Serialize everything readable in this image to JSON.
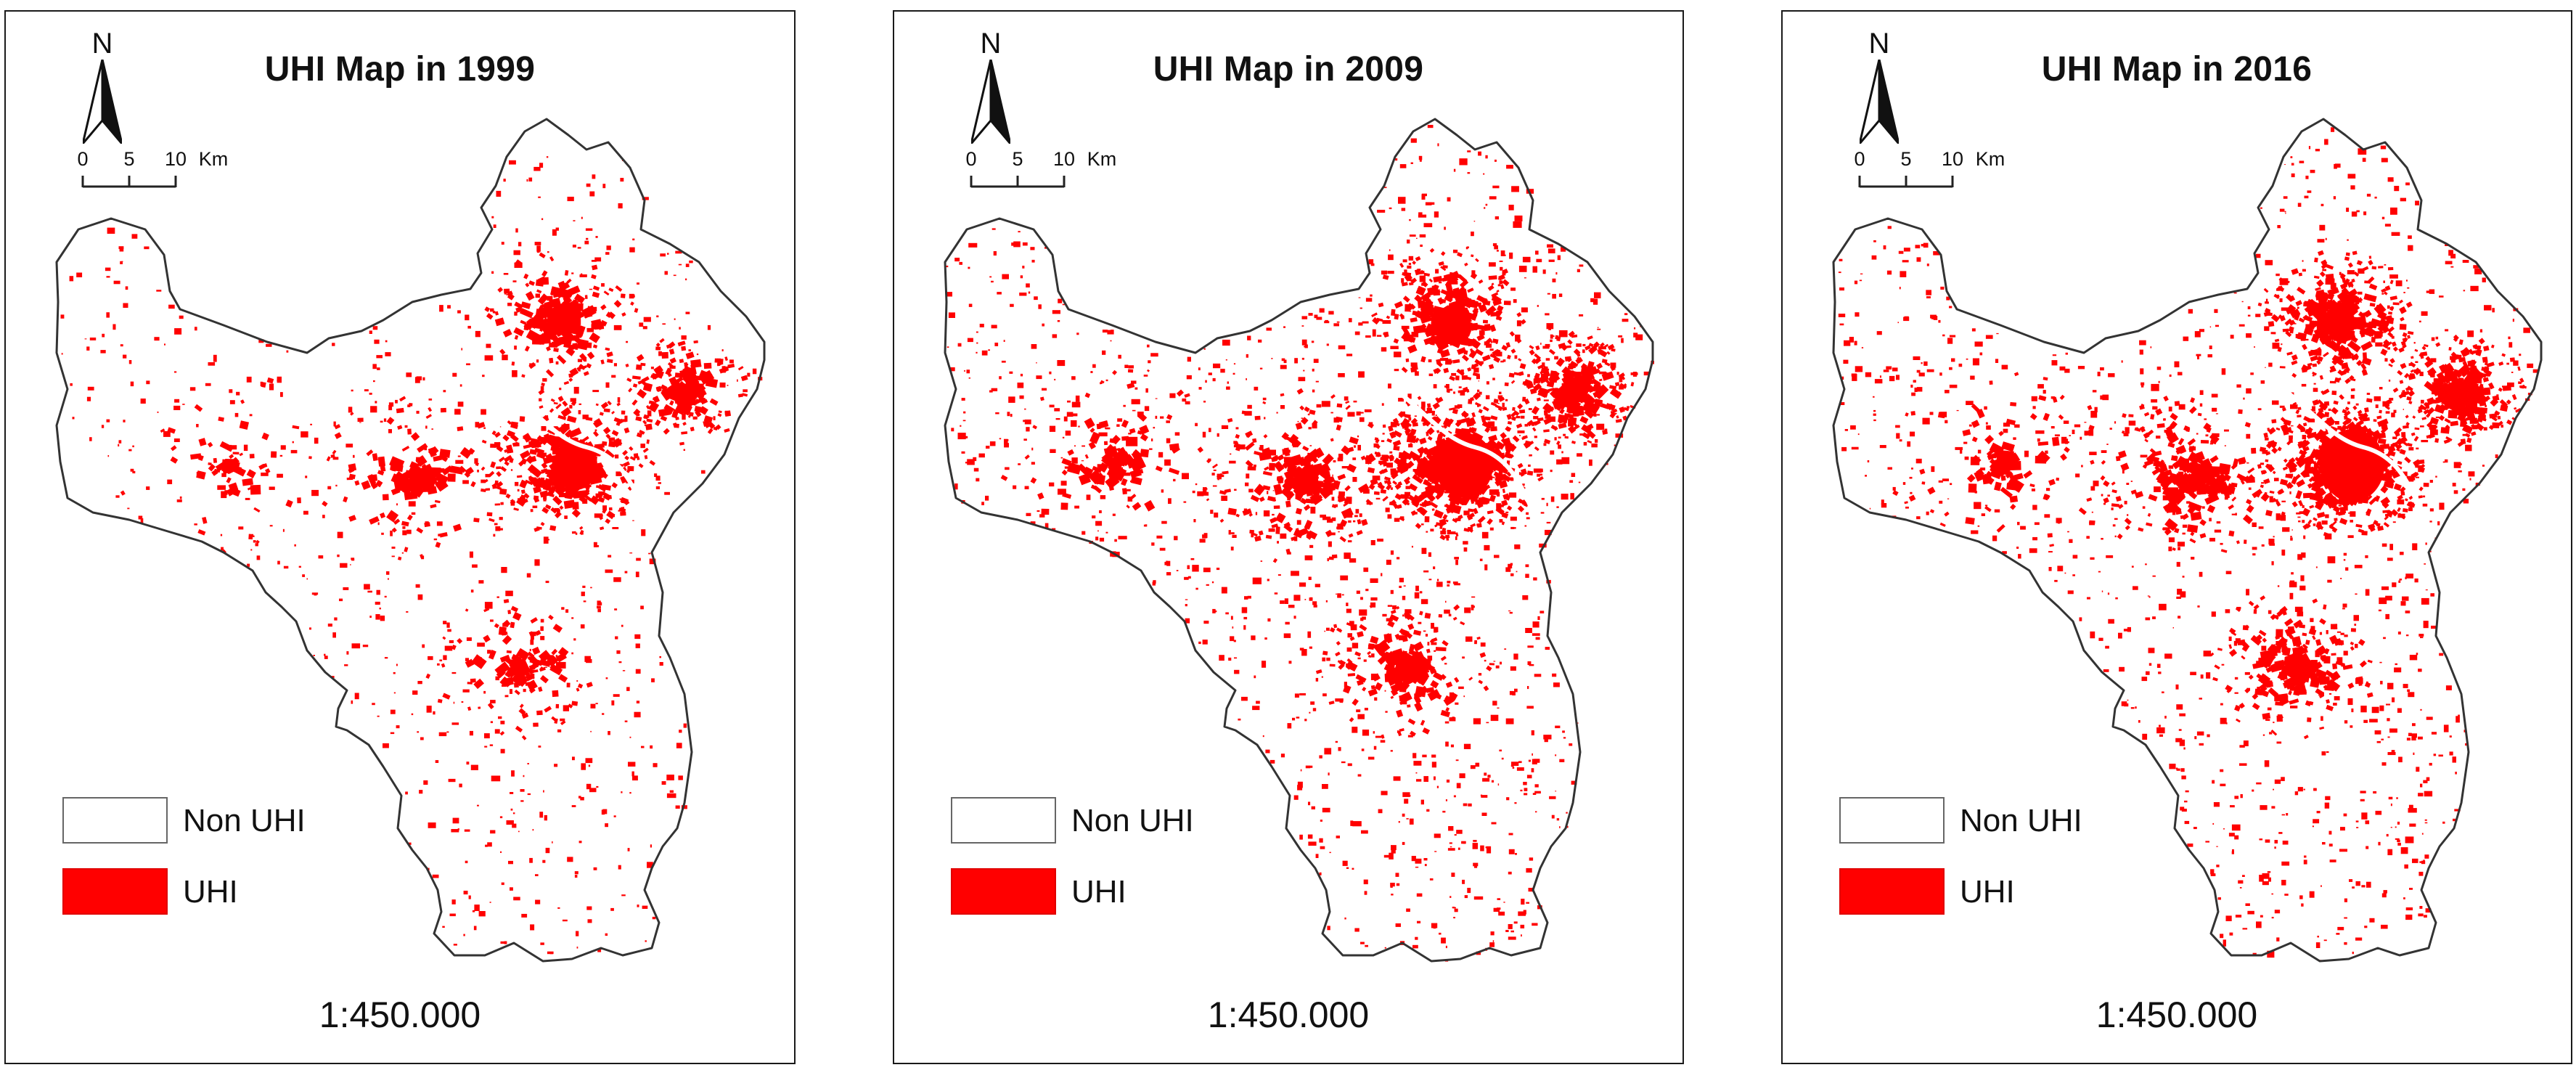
{
  "panels": [
    {
      "title": "UHI Map in 1999",
      "scale_ratio": "1:450.000",
      "uhi_density": 0.45,
      "core_intensity": 0.75
    },
    {
      "title": "UHI Map in 2009",
      "scale_ratio": "1:450.000",
      "uhi_density": 0.8,
      "core_intensity": 1.0
    },
    {
      "title": "UHI Map in 2016",
      "scale_ratio": "1:450.000",
      "uhi_density": 0.68,
      "core_intensity": 1.1
    }
  ],
  "north_label": "N",
  "scale_bar": {
    "ticks": [
      "0",
      "5",
      "10"
    ],
    "unit": "Km"
  },
  "legend": {
    "non_uhi_label": "Non UHI",
    "uhi_label": "UHI"
  },
  "colors": {
    "uhi": "#ff0000",
    "boundary": "#333333",
    "frame": "#1a1a1a"
  },
  "icons": {
    "north_arrow": "north-arrow-icon"
  }
}
